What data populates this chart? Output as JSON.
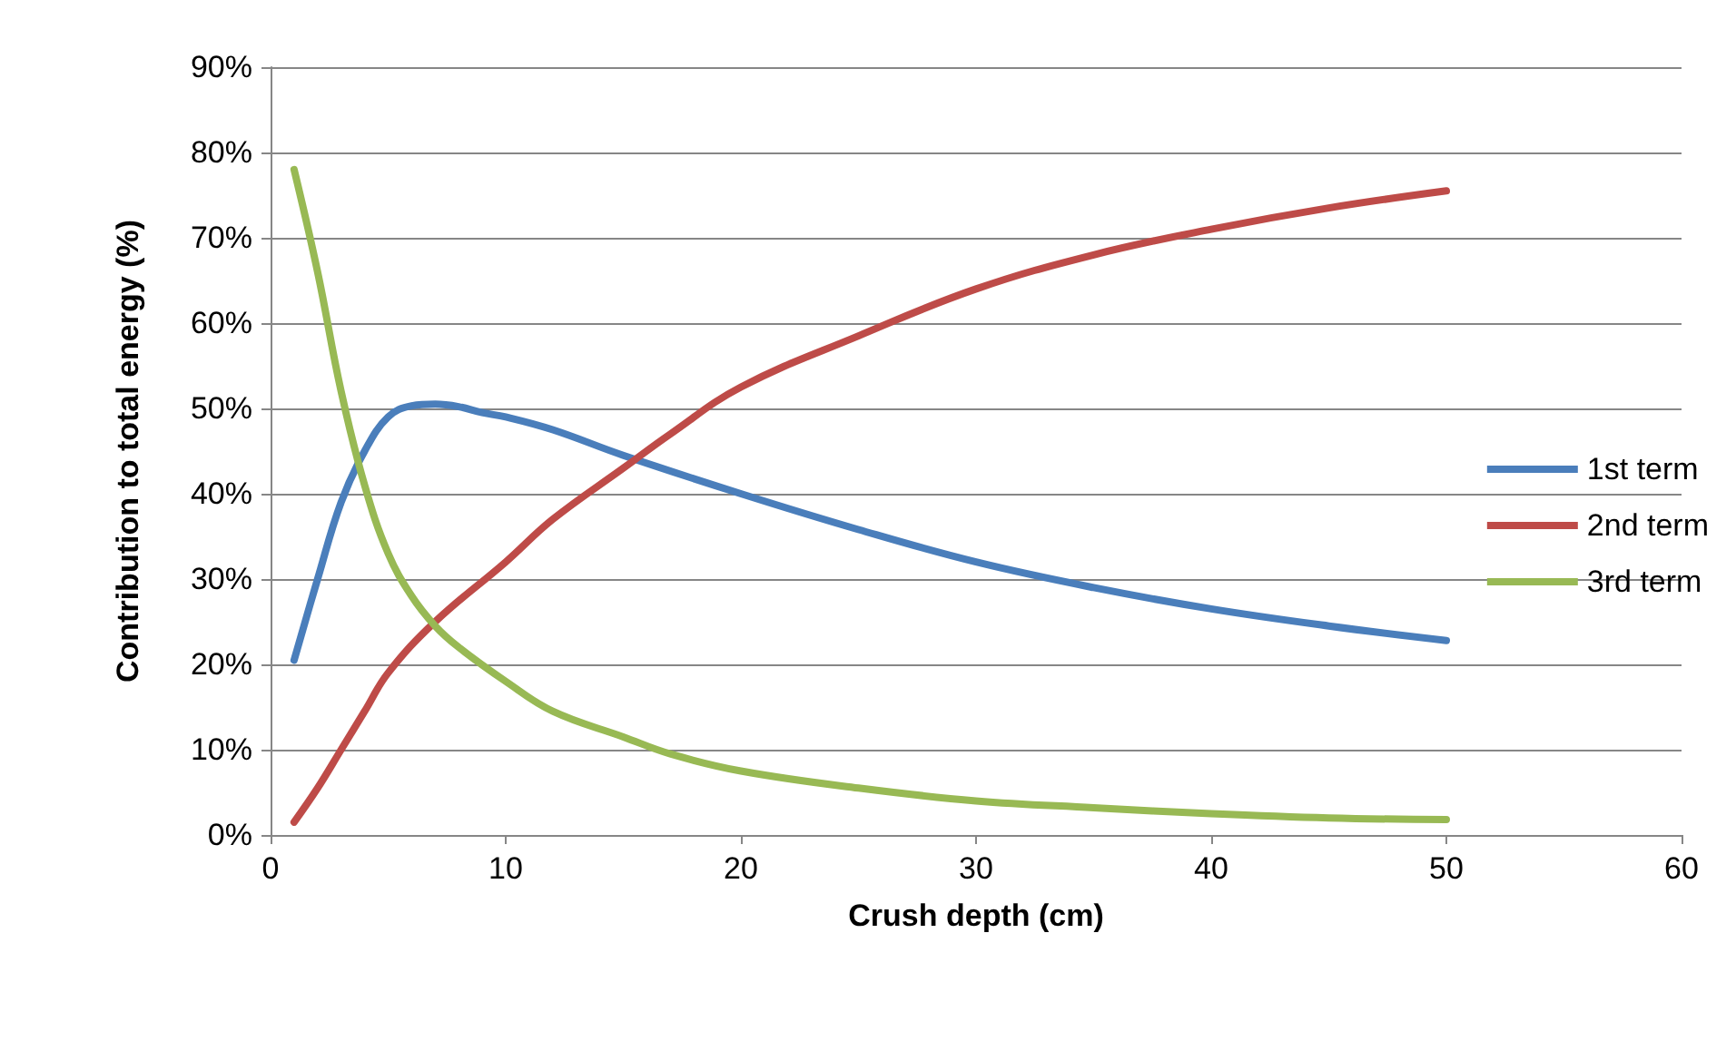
{
  "chart_data": {
    "type": "line",
    "xlabel": "Crush depth (cm)",
    "ylabel": "Contribution to total energy (%)",
    "xlim": [
      0,
      60
    ],
    "xticks": [
      0,
      10,
      20,
      30,
      40,
      50,
      60
    ],
    "ylim": [
      0,
      90
    ],
    "yticks": [
      {
        "value": 0,
        "label": "0%"
      },
      {
        "value": 10,
        "label": "10%"
      },
      {
        "value": 20,
        "label": "20%"
      },
      {
        "value": 30,
        "label": "30%"
      },
      {
        "value": 40,
        "label": "40%"
      },
      {
        "value": 50,
        "label": "50%"
      },
      {
        "value": 60,
        "label": "60%"
      },
      {
        "value": 70,
        "label": "70%"
      },
      {
        "value": 80,
        "label": "80%"
      },
      {
        "value": 90,
        "label": "90%"
      }
    ],
    "grid": "y",
    "legend": "right",
    "marker": "none",
    "line_style": "solid",
    "series": [
      {
        "name": "1st term",
        "color": "#4a7ebb",
        "x": [
          1,
          2,
          3,
          4,
          5,
          6,
          7,
          8,
          9,
          10,
          12,
          15,
          20,
          25,
          30,
          35,
          40,
          45,
          50
        ],
        "values": [
          20.5,
          30,
          39,
          45,
          49,
          50.3,
          50.5,
          50.2,
          49.5,
          49,
          47.5,
          44.5,
          40,
          35.8,
          32,
          29,
          26.5,
          24.5,
          22.8
        ]
      },
      {
        "name": "2nd term",
        "color": "#be4b48",
        "x": [
          1,
          2,
          3,
          4,
          5,
          7,
          10,
          12,
          15,
          17,
          20,
          25,
          30,
          35,
          40,
          45,
          50
        ],
        "values": [
          1.5,
          5.5,
          10,
          14.5,
          19,
          25,
          32,
          37,
          43,
          47,
          52.5,
          58.5,
          64,
          68,
          71,
          73.5,
          75.5
        ]
      },
      {
        "name": "3rd term",
        "color": "#98b954",
        "x": [
          1,
          2,
          3,
          4,
          5,
          6,
          7,
          8,
          10,
          12,
          15,
          17,
          20,
          25,
          30,
          35,
          40,
          45,
          50
        ],
        "values": [
          78,
          66,
          52,
          41,
          33,
          28,
          24.5,
          22,
          18,
          14.5,
          11.5,
          9.5,
          7.5,
          5.5,
          4,
          3.2,
          2.5,
          2,
          1.8
        ]
      }
    ]
  }
}
